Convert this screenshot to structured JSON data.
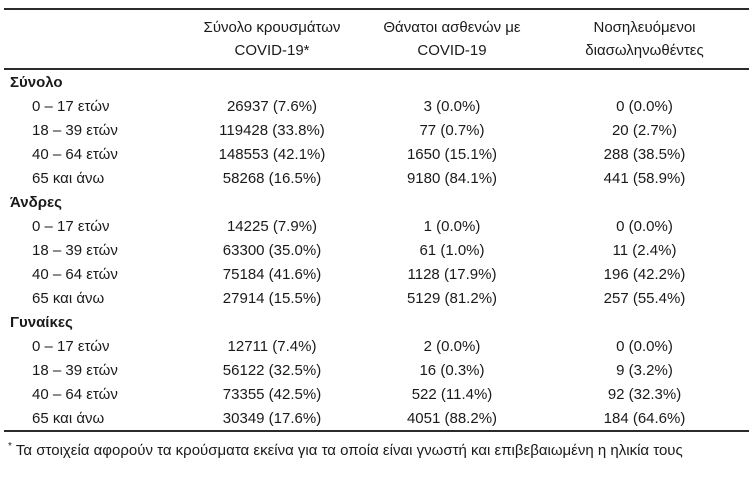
{
  "colors": {
    "background": "#ffffff",
    "text": "#1a1a1a",
    "rule": "#2b2b2b"
  },
  "table": {
    "columns": [
      {
        "line1": "Σύνολο κρουσμάτων",
        "line2": "COVID-19*"
      },
      {
        "line1": "Θάνατοι ασθενών με",
        "line2": "COVID-19"
      },
      {
        "line1": "Νοσηλευόμενοι",
        "line2": "διασωληνωθέντες"
      }
    ],
    "sections": [
      {
        "title": "Σύνολο",
        "rows": [
          {
            "label": "0 – 17 ετών",
            "cases": "26937 (7.6%)",
            "deaths": "3 (0.0%)",
            "intubated": "0 (0.0%)"
          },
          {
            "label": "18 – 39 ετών",
            "cases": "119428 (33.8%)",
            "deaths": "77 (0.7%)",
            "intubated": "20 (2.7%)"
          },
          {
            "label": "40 – 64 ετών",
            "cases": "148553 (42.1%)",
            "deaths": "1650 (15.1%)",
            "intubated": "288 (38.5%)"
          },
          {
            "label": "65 και άνω",
            "cases": "58268 (16.5%)",
            "deaths": "9180 (84.1%)",
            "intubated": "441 (58.9%)"
          }
        ]
      },
      {
        "title": "Άνδρες",
        "rows": [
          {
            "label": "0 – 17 ετών",
            "cases": "14225 (7.9%)",
            "deaths": "1 (0.0%)",
            "intubated": "0 (0.0%)"
          },
          {
            "label": "18 – 39 ετών",
            "cases": "63300 (35.0%)",
            "deaths": "61 (1.0%)",
            "intubated": "11 (2.4%)"
          },
          {
            "label": "40 – 64 ετών",
            "cases": "75184 (41.6%)",
            "deaths": "1128 (17.9%)",
            "intubated": "196 (42.2%)"
          },
          {
            "label": "65 και άνω",
            "cases": "27914 (15.5%)",
            "deaths": "5129 (81.2%)",
            "intubated": "257 (55.4%)"
          }
        ]
      },
      {
        "title": "Γυναίκες",
        "rows": [
          {
            "label": "0 – 17 ετών",
            "cases": "12711 (7.4%)",
            "deaths": "2 (0.0%)",
            "intubated": "0 (0.0%)"
          },
          {
            "label": "18 – 39 ετών",
            "cases": "56122 (32.5%)",
            "deaths": "16 (0.3%)",
            "intubated": "9 (3.2%)"
          },
          {
            "label": "40 – 64 ετών",
            "cases": "73355 (42.5%)",
            "deaths": "522 (11.4%)",
            "intubated": "92 (32.3%)"
          },
          {
            "label": "65 και άνω",
            "cases": "30349 (17.6%)",
            "deaths": "4051 (88.2%)",
            "intubated": "184 (64.6%)"
          }
        ]
      }
    ],
    "footnote": {
      "marker": "*",
      "text": "Τα στοιχεία αφορούν τα κρούσματα εκείνα για τα οποία είναι γνωστή και επιβεβαιωμένη η ηλικία τους"
    }
  }
}
